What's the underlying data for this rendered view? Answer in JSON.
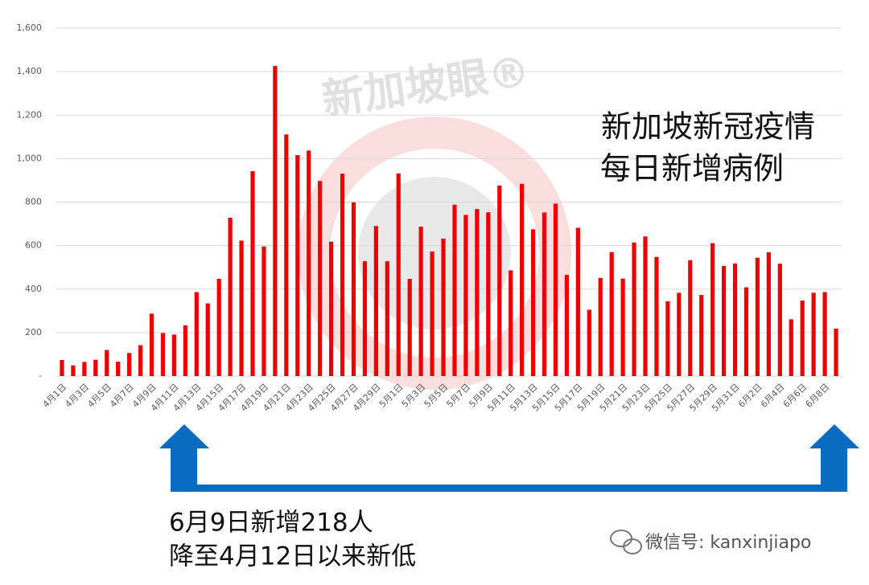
{
  "chart_data": {
    "type": "bar",
    "categories": [
      "4月1日",
      null,
      "4月3日",
      null,
      "4月5日",
      null,
      "4月7日",
      null,
      "4月9日",
      null,
      "4月11日",
      null,
      "4月13日",
      null,
      "4月15日",
      null,
      "4月17日",
      null,
      "4月19日",
      null,
      "4月21日",
      null,
      "4月23日",
      null,
      "4月25日",
      null,
      "4月27日",
      null,
      "4月29日",
      null,
      "5月1日",
      null,
      "5月3日",
      null,
      "5月5日",
      null,
      "5月7日",
      null,
      "5月9日",
      null,
      "5月11日",
      null,
      "5月13日",
      null,
      "5月15日",
      null,
      "5月17日",
      null,
      "5月19日",
      null,
      "5月21日",
      null,
      "5月23日",
      null,
      "5月25日",
      null,
      "5月27日",
      null,
      "5月29日",
      null,
      "5月31日",
      null,
      "6月2日",
      null,
      "6月4日",
      null,
      "6月6日",
      null,
      "6月8日",
      null
    ],
    "values": [
      74,
      49,
      65,
      75,
      120,
      66,
      106,
      142,
      287,
      198,
      191,
      233,
      386,
      334,
      447,
      728,
      623,
      942,
      596,
      1426,
      1111,
      1016,
      1037,
      897,
      618,
      931,
      799,
      528,
      690,
      528,
      932,
      447,
      687,
      573,
      632,
      788,
      741,
      768,
      753,
      876,
      486,
      884,
      675,
      752,
      793,
      465,
      682,
      305,
      451,
      570,
      448,
      614,
      642,
      548,
      344,
      383,
      533,
      373,
      611,
      506,
      518,
      408,
      544,
      569,
      517,
      261,
      347,
      383,
      386,
      218
    ],
    "color": "#ee0000",
    "ylim": [
      0,
      1600
    ],
    "yticks": [
      {
        "value": 0,
        "label": "-"
      },
      200,
      400,
      600,
      800,
      {
        "value": 1000,
        "label": "1,000"
      },
      {
        "value": 1200,
        "label": "1,200"
      },
      {
        "value": 1400,
        "label": "1,400"
      },
      {
        "value": 1600,
        "label": "1,600"
      }
    ],
    "grid": true,
    "annotation_title": [
      "新加坡新冠疫情",
      "每日新增病例"
    ],
    "annotation_note": [
      "6月9日新增218人",
      "降至4月12日以来新低"
    ],
    "watermark": "新加坡眼®",
    "footer": "微信号: kanxinjiapo"
  }
}
